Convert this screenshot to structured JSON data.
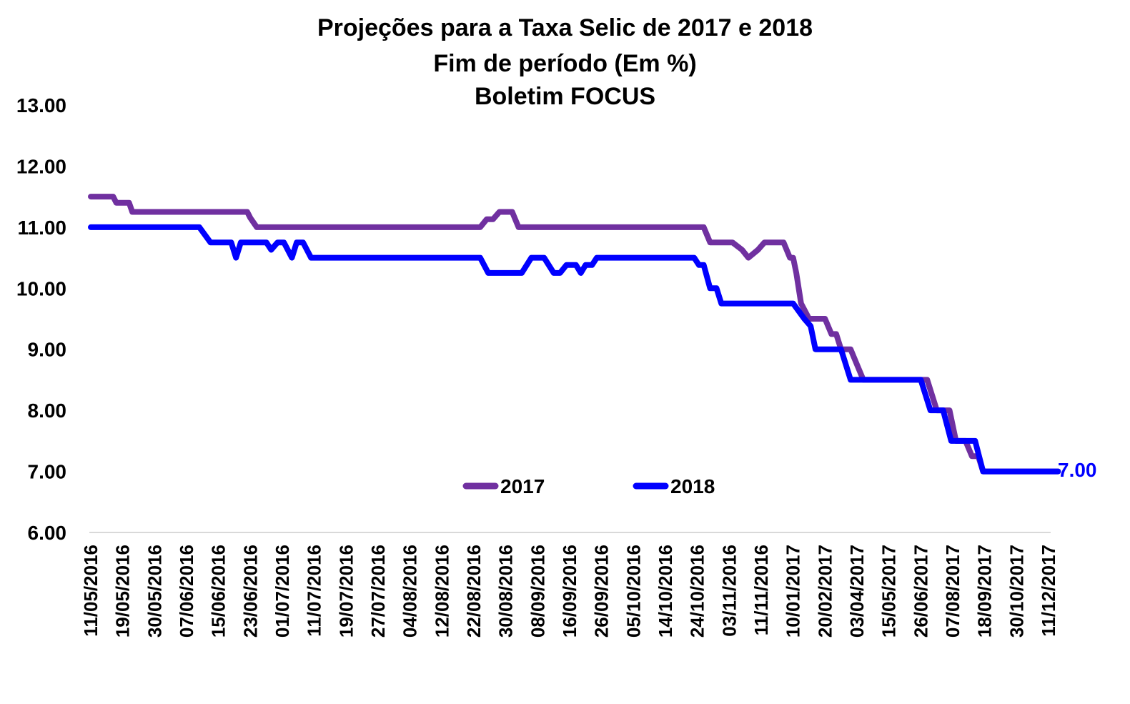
{
  "chart_data": {
    "type": "line",
    "title": "Projeções para a Taxa Selic de 2017 e 2018",
    "subtitle": "Fim de período (Em %)",
    "subtitle2": "Boletim FOCUS",
    "xlabel": "",
    "ylabel": "",
    "ylim": [
      6,
      13
    ],
    "yticks": [
      "6.00",
      "7.00",
      "8.00",
      "9.00",
      "10.00",
      "11.00",
      "12.00",
      "13.00"
    ],
    "grid": false,
    "legend_position": "bottom-center",
    "x_tick_labels": [
      "11/05/2016",
      "19/05/2016",
      "30/05/2016",
      "07/06/2016",
      "15/06/2016",
      "23/06/2016",
      "01/07/2016",
      "11/07/2016",
      "19/07/2016",
      "27/07/2016",
      "04/08/2016",
      "12/08/2016",
      "22/08/2016",
      "30/08/2016",
      "08/09/2016",
      "16/09/2016",
      "26/09/2016",
      "05/10/2016",
      "14/10/2016",
      "24/10/2016",
      "03/11/2016",
      "11/11/2016",
      "10/01/2017",
      "20/02/2017",
      "03/04/2017",
      "15/05/2017",
      "26/06/2017",
      "07/08/2017",
      "18/09/2017",
      "30/10/2017",
      "11/12/2017"
    ],
    "end_label": "7.00",
    "series": [
      {
        "name": "2017",
        "color": "#7030A0",
        "points": [
          [
            0,
            11.5
          ],
          [
            0.7,
            11.5
          ],
          [
            0.8,
            11.4
          ],
          [
            1.2,
            11.4
          ],
          [
            1.3,
            11.25
          ],
          [
            4.9,
            11.25
          ],
          [
            5.0,
            11.15
          ],
          [
            5.2,
            11.0
          ],
          [
            12.2,
            11.0
          ],
          [
            12.4,
            11.13
          ],
          [
            12.6,
            11.13
          ],
          [
            12.8,
            11.25
          ],
          [
            13.2,
            11.25
          ],
          [
            13.4,
            11.0
          ],
          [
            19.2,
            11.0
          ],
          [
            19.4,
            10.75
          ],
          [
            20.1,
            10.75
          ],
          [
            20.4,
            10.63
          ],
          [
            20.6,
            10.5
          ],
          [
            20.9,
            10.63
          ],
          [
            21.1,
            10.75
          ],
          [
            21.7,
            10.75
          ],
          [
            21.9,
            10.5
          ],
          [
            22.0,
            10.5
          ],
          [
            22.1,
            10.25
          ],
          [
            22.25,
            9.75
          ],
          [
            22.5,
            9.5
          ],
          [
            23.0,
            9.5
          ],
          [
            23.2,
            9.25
          ],
          [
            23.35,
            9.25
          ],
          [
            23.5,
            9.0
          ],
          [
            23.8,
            9.0
          ],
          [
            24.0,
            8.75
          ],
          [
            24.2,
            8.5
          ],
          [
            26.2,
            8.5
          ],
          [
            26.5,
            8.0
          ],
          [
            26.9,
            8.0
          ],
          [
            27.1,
            7.5
          ],
          [
            27.4,
            7.5
          ],
          [
            27.6,
            7.25
          ],
          [
            27.8,
            7.25
          ],
          [
            27.95,
            7.0
          ],
          [
            30.3,
            7.0
          ]
        ]
      },
      {
        "name": "2018",
        "color": "#0000FF",
        "points": [
          [
            0,
            11.0
          ],
          [
            3.4,
            11.0
          ],
          [
            3.75,
            10.75
          ],
          [
            4.4,
            10.75
          ],
          [
            4.55,
            10.5
          ],
          [
            4.7,
            10.75
          ],
          [
            5.5,
            10.75
          ],
          [
            5.65,
            10.63
          ],
          [
            5.85,
            10.75
          ],
          [
            6.05,
            10.75
          ],
          [
            6.3,
            10.5
          ],
          [
            6.45,
            10.75
          ],
          [
            6.65,
            10.75
          ],
          [
            6.9,
            10.5
          ],
          [
            12.2,
            10.5
          ],
          [
            12.45,
            10.25
          ],
          [
            13.5,
            10.25
          ],
          [
            13.8,
            10.5
          ],
          [
            14.2,
            10.5
          ],
          [
            14.5,
            10.25
          ],
          [
            14.7,
            10.25
          ],
          [
            14.9,
            10.38
          ],
          [
            15.2,
            10.38
          ],
          [
            15.35,
            10.25
          ],
          [
            15.5,
            10.38
          ],
          [
            15.7,
            10.38
          ],
          [
            15.85,
            10.5
          ],
          [
            18.9,
            10.5
          ],
          [
            19.05,
            10.38
          ],
          [
            19.2,
            10.38
          ],
          [
            19.4,
            10.0
          ],
          [
            19.6,
            10.0
          ],
          [
            19.75,
            9.75
          ],
          [
            22.0,
            9.75
          ],
          [
            22.35,
            9.5
          ],
          [
            22.55,
            9.38
          ],
          [
            22.7,
            9.0
          ],
          [
            23.5,
            9.0
          ],
          [
            23.8,
            8.5
          ],
          [
            26.0,
            8.5
          ],
          [
            26.3,
            8.0
          ],
          [
            26.7,
            8.0
          ],
          [
            26.95,
            7.5
          ],
          [
            27.7,
            7.5
          ],
          [
            27.95,
            7.0
          ],
          [
            30.3,
            7.0
          ]
        ]
      }
    ]
  }
}
